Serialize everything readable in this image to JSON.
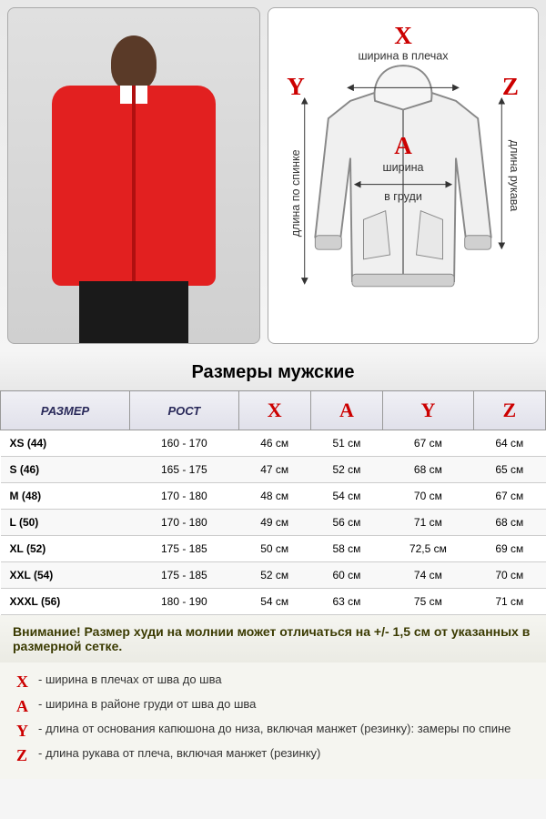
{
  "section_title": "Размеры мужские",
  "diagram": {
    "letters": {
      "X": "X",
      "A": "A",
      "Y": "Y",
      "Z": "Z"
    },
    "labels": {
      "shoulders": "ширина в плечах",
      "chest_l1": "ширина",
      "chest_l2": "в груди",
      "back": "длина по спинке",
      "sleeve": "длина рукава"
    },
    "letter_color": "#cc0000",
    "hoodie_fill": "#f0f0f0",
    "hoodie_stroke": "#888888"
  },
  "table": {
    "headers": {
      "size": "РАЗМЕР",
      "height": "РОСТ",
      "X": "X",
      "A": "A",
      "Y": "Y",
      "Z": "Z"
    },
    "rows": [
      {
        "size": "XS (44)",
        "height": "160 - 170",
        "X": "46 см",
        "A": "51 см",
        "Y": "67 см",
        "Z": "64 см"
      },
      {
        "size": "S (46)",
        "height": "165 - 175",
        "X": "47 см",
        "A": "52 см",
        "Y": "68 см",
        "Z": "65 см"
      },
      {
        "size": "M (48)",
        "height": "170 - 180",
        "X": "48 см",
        "A": "54 см",
        "Y": "70 см",
        "Z": "67 см"
      },
      {
        "size": "L (50)",
        "height": "170 - 180",
        "X": "49 см",
        "A": "56 см",
        "Y": "71 см",
        "Z": "68 см"
      },
      {
        "size": "XL (52)",
        "height": "175 - 185",
        "X": "50 см",
        "A": "58 см",
        "Y": "72,5 см",
        "Z": "69 см"
      },
      {
        "size": "XXL (54)",
        "height": "175 - 185",
        "X": "52 см",
        "A": "60 см",
        "Y": "74 см",
        "Z": "70 см"
      },
      {
        "size": "XXXL (56)",
        "height": "180 - 190",
        "X": "54 см",
        "A": "63 см",
        "Y": "75 см",
        "Z": "71 см"
      }
    ],
    "header_bg": "#e8e8f0",
    "letter_color": "#cc0000",
    "border_color": "#999999"
  },
  "warning": "Внимание! Размер худи на молнии может отличаться на +/- 1,5 см от указанных в размерной сетке.",
  "legend": [
    {
      "letter": "X",
      "text": "- ширина в плечах от шва до шва"
    },
    {
      "letter": "A",
      "text": "- ширина в районе груди от шва до шва"
    },
    {
      "letter": "Y",
      "text": "- длина от основания капюшона до низа, включая манжет (резинку): замеры по спине"
    },
    {
      "letter": "Z",
      "text": "- длина рукава от плеча, включая манжет (резинку)"
    }
  ],
  "colors": {
    "hoodie_red": "#e22020",
    "skin": "#5a3a28",
    "pants": "#1a1a1a"
  }
}
